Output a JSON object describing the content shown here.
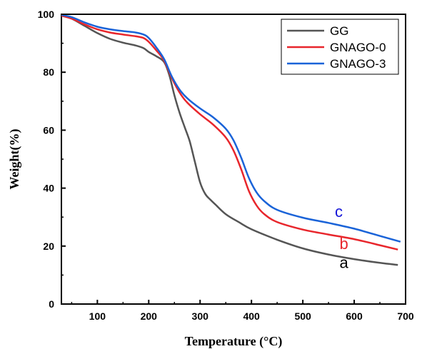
{
  "chart_data": {
    "type": "line",
    "xlabel": "Temperature (°C)",
    "ylabel": "Weight(%)",
    "xlim": [
      30,
      700
    ],
    "ylim": [
      0,
      100
    ],
    "xticks": [
      100,
      200,
      300,
      400,
      500,
      600,
      700
    ],
    "yticks": [
      0,
      20,
      40,
      60,
      80,
      100
    ],
    "grid": false,
    "legend_position": "top-right",
    "series": [
      {
        "name": "GG",
        "color": "#555555",
        "label": "a",
        "label_color": "#000000",
        "x": [
          30,
          50,
          75,
          100,
          125,
          150,
          175,
          190,
          200,
          215,
          230,
          240,
          250,
          260,
          270,
          280,
          290,
          300,
          310,
          320,
          330,
          350,
          375,
          400,
          450,
          500,
          550,
          600,
          650,
          685
        ],
        "y": [
          99.5,
          98.5,
          96,
          93.5,
          91.5,
          90.2,
          89.2,
          88.3,
          87,
          85.5,
          83.5,
          79,
          72,
          66,
          61,
          56,
          49,
          42,
          38,
          36,
          34.3,
          31,
          28.3,
          25.8,
          22.2,
          19.2,
          17.1,
          15.5,
          14.2,
          13.5
        ]
      },
      {
        "name": "GNAGO-0",
        "color": "#e8262c",
        "label": "b",
        "label_color": "#e8262c",
        "x": [
          30,
          50,
          75,
          100,
          125,
          150,
          175,
          190,
          200,
          215,
          230,
          245,
          260,
          275,
          300,
          325,
          350,
          365,
          380,
          395,
          410,
          425,
          450,
          500,
          550,
          600,
          650,
          685
        ],
        "y": [
          99.5,
          98.5,
          96.5,
          94.8,
          93.7,
          93.0,
          92.4,
          91.8,
          90.5,
          87.5,
          84,
          78,
          73,
          69.5,
          65.5,
          62,
          57.5,
          53,
          46.5,
          39,
          34,
          31,
          28.3,
          25.7,
          24,
          22.4,
          20.3,
          18.8
        ]
      },
      {
        "name": "GNAGO-3",
        "color": "#1a63d8",
        "label": "c",
        "label_color": "#1515d8",
        "x": [
          30,
          50,
          75,
          100,
          125,
          150,
          175,
          190,
          200,
          215,
          230,
          245,
          260,
          275,
          300,
          325,
          350,
          365,
          380,
          395,
          410,
          425,
          450,
          500,
          550,
          600,
          650,
          690
        ],
        "y": [
          99.8,
          99.0,
          97.2,
          95.7,
          94.8,
          94.2,
          93.7,
          93.0,
          91.8,
          88.5,
          84.5,
          78.5,
          74,
          71,
          67.5,
          64.5,
          60.5,
          56.5,
          50.5,
          43.5,
          38.5,
          35.5,
          32.5,
          29.8,
          28,
          26,
          23.5,
          21.5
        ]
      }
    ],
    "annotations": [
      {
        "text": "c",
        "x": 570,
        "y": 30,
        "color": "#1515d8"
      },
      {
        "text": "b",
        "x": 580,
        "y": 19,
        "color": "#e8262c"
      },
      {
        "text": "a",
        "x": 580,
        "y": 12.5,
        "color": "#000000"
      }
    ]
  }
}
